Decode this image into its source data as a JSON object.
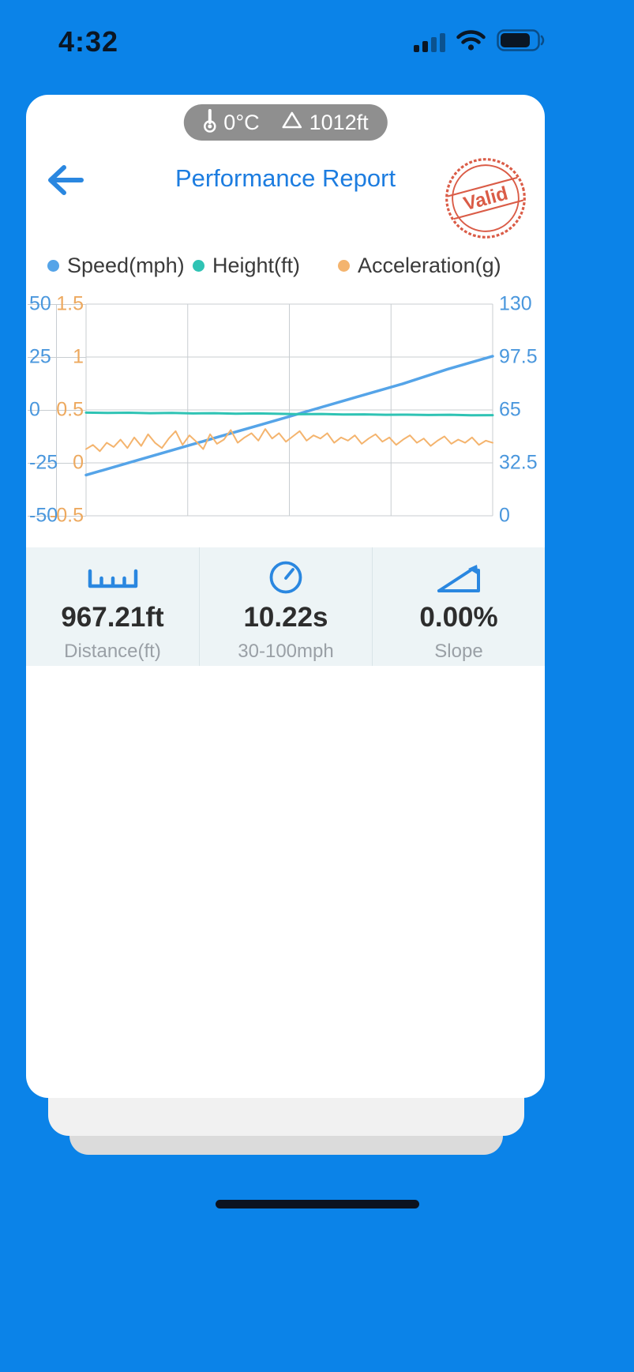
{
  "theme": {
    "background": "#0b83e8",
    "card": "#ffffff",
    "title": "#1d7de0",
    "accent": "#2a87e0",
    "stamp": "#d8503a",
    "pill_bg": "#8f8f8f",
    "stats_bg": "#edf4f6",
    "value_text": "#2d2d2d",
    "label_text": "#9aa0a6"
  },
  "status_bar": {
    "time": "4:32"
  },
  "env_badge": {
    "temperature": "0°C",
    "altitude": "1012ft"
  },
  "header": {
    "title": "Performance Report",
    "stamp_label": "Valid"
  },
  "chart_data": {
    "type": "line",
    "title": "",
    "grid": true,
    "legend_position": "top",
    "legend": [
      {
        "label": "Speed(mph)",
        "color": "#55a4e8"
      },
      {
        "label": "Height(ft)",
        "color": "#2fc3b4"
      },
      {
        "label": "Acceleration(g)",
        "color": "#f4b46e"
      }
    ],
    "axes": {
      "left_outer": {
        "color": "#4a97dd",
        "range": [
          -50,
          50
        ],
        "ticks": [
          50,
          25,
          0,
          -25,
          -50
        ]
      },
      "left_inner": {
        "color": "#eda95f",
        "range": [
          -0.5,
          1.5
        ],
        "ticks": [
          1.5,
          1,
          0.5,
          0,
          -0.5
        ]
      },
      "right": {
        "color": "#4a97dd",
        "range": [
          0,
          130
        ],
        "ticks": [
          130,
          97.5,
          65,
          32.5,
          0
        ]
      }
    },
    "x_axis": {
      "ticks": []
    },
    "series": [
      {
        "name": "Speed(mph)",
        "color": "#55a4e8",
        "axis": "right",
        "width": 3.5,
        "values": [
          25,
          33,
          41,
          49,
          57,
          65,
          73,
          81,
          90,
          98
        ]
      },
      {
        "name": "Height(ft)",
        "color": "#2fc3b4",
        "axis": "right",
        "width": 3,
        "values": [
          63.4,
          63.2,
          63.3,
          63.0,
          63.2,
          62.9,
          63.0,
          62.7,
          62.9,
          62.6,
          62.4,
          62.5,
          62.2,
          62.3,
          62.0,
          62.1,
          61.9,
          62.0,
          61.7,
          61.8
        ]
      },
      {
        "name": "Acceleration(g)",
        "color": "#f4b46e",
        "axis": "left_inner",
        "width": 2,
        "values": [
          0.13,
          0.17,
          0.11,
          0.19,
          0.15,
          0.22,
          0.14,
          0.24,
          0.16,
          0.27,
          0.19,
          0.14,
          0.23,
          0.3,
          0.17,
          0.26,
          0.2,
          0.13,
          0.27,
          0.18,
          0.22,
          0.31,
          0.19,
          0.24,
          0.28,
          0.21,
          0.32,
          0.23,
          0.28,
          0.2,
          0.25,
          0.3,
          0.21,
          0.26,
          0.23,
          0.28,
          0.19,
          0.24,
          0.21,
          0.26,
          0.18,
          0.23,
          0.27,
          0.2,
          0.24,
          0.17,
          0.22,
          0.26,
          0.19,
          0.23,
          0.16,
          0.21,
          0.25,
          0.18,
          0.22,
          0.19,
          0.24,
          0.17,
          0.21,
          0.19
        ]
      }
    ]
  },
  "stats": [
    {
      "icon": "ruler-icon",
      "value": "967.21ft",
      "label": "Distance(ft)"
    },
    {
      "icon": "gauge-icon",
      "value": "10.22s",
      "label": "30-100mph"
    },
    {
      "icon": "slope-icon",
      "value": "0.00%",
      "label": "Slope"
    }
  ]
}
